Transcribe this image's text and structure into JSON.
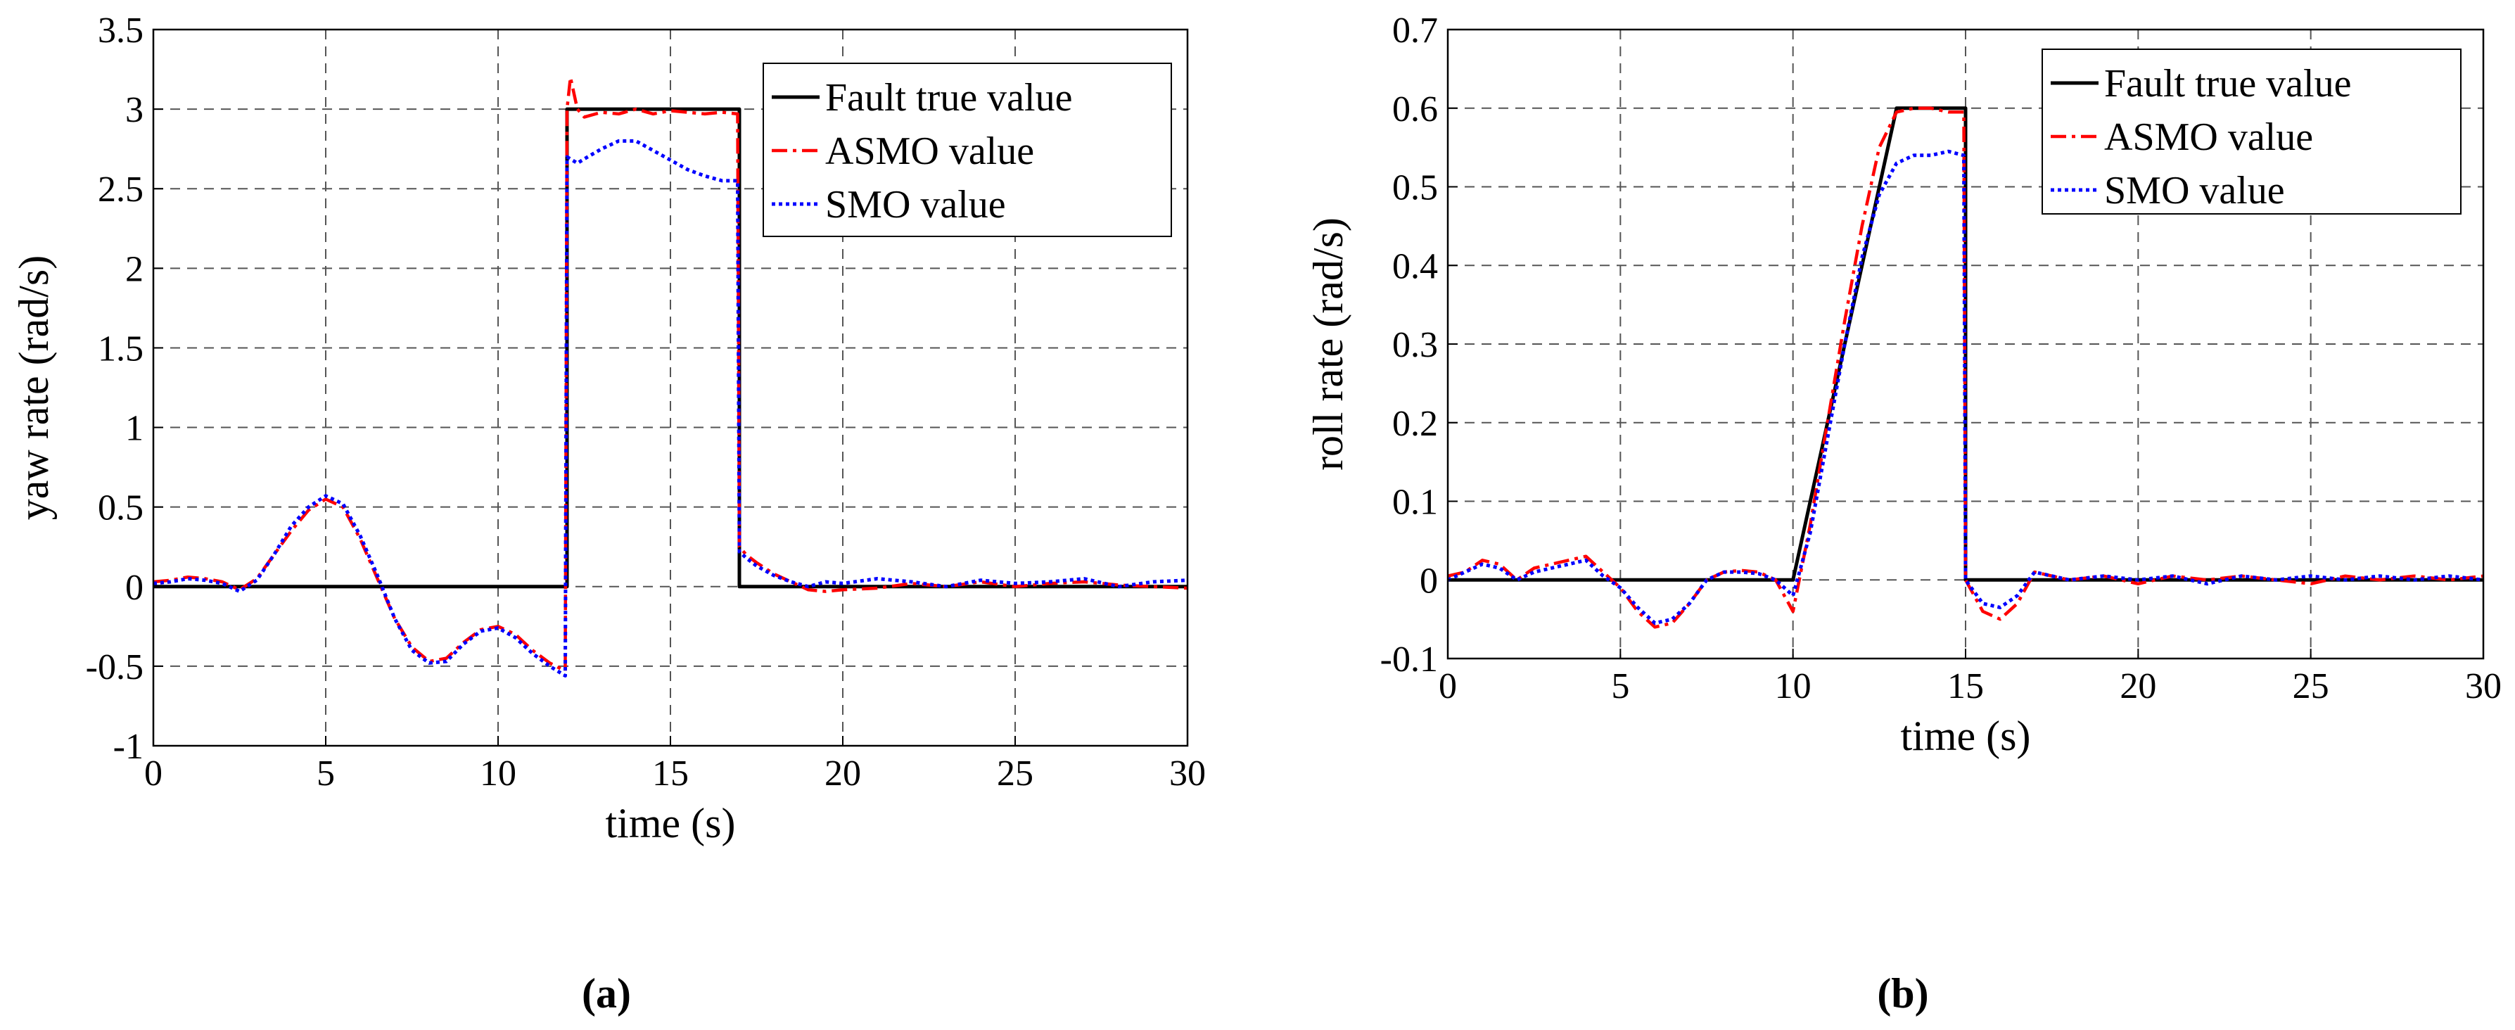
{
  "figure": {
    "captions": [
      "(a)",
      "(b)"
    ]
  },
  "colors": {
    "fault": "#000000",
    "asmo": "#ff0000",
    "smo": "#0000ff",
    "grid": "#555555"
  },
  "chart_data": [
    {
      "type": "line",
      "panel": "a",
      "xlabel": "time (s)",
      "ylabel": "yaw rate (rad/s)",
      "xlim": [
        0,
        30
      ],
      "ylim": [
        -1,
        3.5
      ],
      "xticks": [
        0,
        5,
        10,
        15,
        20,
        25,
        30
      ],
      "yticks": [
        -1,
        -0.5,
        0,
        0.5,
        1,
        1.5,
        2,
        2.5,
        3,
        3.5
      ],
      "xtick_labels": [
        "0",
        "5",
        "10",
        "15",
        "20",
        "25",
        "30"
      ],
      "ytick_labels": [
        "-1",
        "-0.5",
        "0",
        "0.5",
        "1",
        "1.5",
        "2",
        "2.5",
        "3",
        "3.5"
      ],
      "grid": true,
      "legend": {
        "placement": "top-right",
        "entries": [
          "Fault true value",
          "ASMO value",
          "SMO value"
        ]
      },
      "series": [
        {
          "name": "Fault true value",
          "style": "solid",
          "x": [
            0,
            12,
            12,
            17,
            17,
            30
          ],
          "y": [
            0,
            0,
            3,
            3,
            0,
            0
          ]
        },
        {
          "name": "ASMO value",
          "style": "dashdot",
          "x": [
            0,
            0.5,
            1,
            1.5,
            2,
            2.5,
            3,
            3.5,
            4,
            4.5,
            5,
            5.5,
            6,
            6.5,
            7,
            7.5,
            8,
            8.5,
            9,
            9.5,
            10,
            10.5,
            11,
            11.5,
            11.95,
            12,
            12.1,
            12.3,
            12.5,
            13,
            13.5,
            14,
            14.5,
            15,
            15.5,
            16,
            16.5,
            16.95,
            17,
            17.2,
            17.5,
            18,
            18.5,
            19,
            19.5,
            20,
            21,
            22,
            23,
            24,
            25,
            26,
            27,
            28,
            29,
            30
          ],
          "y": [
            0.03,
            0.04,
            0.06,
            0.05,
            0.03,
            -0.02,
            0.05,
            0.2,
            0.35,
            0.48,
            0.55,
            0.5,
            0.3,
            0.05,
            -0.2,
            -0.38,
            -0.47,
            -0.45,
            -0.35,
            -0.27,
            -0.25,
            -0.3,
            -0.4,
            -0.48,
            -0.53,
            3.0,
            3.2,
            3.0,
            2.95,
            2.98,
            2.97,
            3.0,
            2.97,
            2.99,
            2.98,
            2.97,
            2.98,
            2.97,
            0.25,
            0.2,
            0.15,
            0.08,
            0.03,
            -0.02,
            -0.03,
            -0.02,
            -0.01,
            0.02,
            0.0,
            0.03,
            0.0,
            0.02,
            0.03,
            0.01,
            0.0,
            -0.01
          ]
        },
        {
          "name": "SMO value",
          "style": "dotted",
          "x": [
            0,
            0.5,
            1,
            1.5,
            2,
            2.5,
            3,
            3.5,
            4,
            4.5,
            5,
            5.5,
            6,
            6.5,
            7,
            7.5,
            8,
            8.5,
            9,
            9.5,
            10,
            10.5,
            11,
            11.5,
            11.95,
            12,
            12.3,
            12.6,
            13,
            13.5,
            14,
            14.5,
            15,
            15.5,
            16,
            16.5,
            16.95,
            17,
            17.2,
            17.5,
            18,
            18.5,
            19,
            19.5,
            20,
            21,
            22,
            23,
            24,
            25,
            26,
            27,
            28,
            29,
            30
          ],
          "y": [
            0.02,
            0.03,
            0.05,
            0.04,
            0.02,
            -0.03,
            0.04,
            0.2,
            0.38,
            0.5,
            0.57,
            0.52,
            0.32,
            0.07,
            -0.2,
            -0.4,
            -0.48,
            -0.47,
            -0.36,
            -0.28,
            -0.26,
            -0.32,
            -0.42,
            -0.5,
            -0.56,
            2.7,
            2.66,
            2.7,
            2.75,
            2.8,
            2.8,
            2.74,
            2.68,
            2.62,
            2.58,
            2.55,
            2.55,
            0.22,
            0.18,
            0.13,
            0.07,
            0.03,
            0.0,
            0.03,
            0.02,
            0.05,
            0.03,
            0.0,
            0.04,
            0.02,
            0.03,
            0.05,
            0.0,
            0.03,
            0.04
          ]
        }
      ]
    },
    {
      "type": "line",
      "panel": "b",
      "xlabel": "time (s)",
      "ylabel": "roll rate (rad/s)",
      "xlim": [
        0,
        30
      ],
      "ylim": [
        -0.1,
        0.7
      ],
      "xticks": [
        0,
        5,
        10,
        15,
        20,
        25,
        30
      ],
      "yticks": [
        -0.1,
        0,
        0.1,
        0.2,
        0.3,
        0.4,
        0.5,
        0.6,
        0.7
      ],
      "xtick_labels": [
        "0",
        "5",
        "10",
        "15",
        "20",
        "25",
        "30"
      ],
      "ytick_labels": [
        "-0.1",
        "0",
        "0.1",
        "0.2",
        "0.3",
        "0.4",
        "0.5",
        "0.6",
        "0.7"
      ],
      "grid": true,
      "legend": {
        "placement": "top-right",
        "entries": [
          "Fault true value",
          "ASMO value",
          "SMO value"
        ]
      },
      "series": [
        {
          "name": "Fault true value",
          "style": "solid",
          "x": [
            0,
            10,
            13,
            15,
            15,
            30
          ],
          "y": [
            0,
            0,
            0.6,
            0.6,
            0,
            0
          ]
        },
        {
          "name": "ASMO value",
          "style": "dashdot",
          "x": [
            0,
            0.5,
            1,
            1.5,
            2,
            2.5,
            3,
            3.5,
            4,
            4.5,
            5,
            5.5,
            6,
            6.5,
            7,
            7.5,
            8,
            8.5,
            9,
            9.5,
            10,
            10.5,
            11,
            11.5,
            12,
            12.5,
            13,
            13.5,
            14,
            14.5,
            14.95,
            15,
            15.5,
            16,
            16.5,
            17,
            17.5,
            18,
            19,
            20,
            21,
            22,
            23,
            24,
            25,
            26,
            27,
            28,
            29,
            30
          ],
          "y": [
            0.005,
            0.01,
            0.025,
            0.02,
            0.0,
            0.015,
            0.02,
            0.025,
            0.03,
            0.01,
            -0.01,
            -0.04,
            -0.06,
            -0.055,
            -0.03,
            0.0,
            0.01,
            0.012,
            0.01,
            0.0,
            -0.04,
            0.07,
            0.2,
            0.33,
            0.45,
            0.55,
            0.595,
            0.6,
            0.6,
            0.595,
            0.595,
            0.0,
            -0.04,
            -0.05,
            -0.03,
            0.01,
            0.005,
            0.0,
            0.005,
            -0.005,
            0.005,
            0.0,
            0.005,
            0.0,
            -0.005,
            0.005,
            0.0,
            0.005,
            0.0,
            0.005
          ]
        },
        {
          "name": "SMO value",
          "style": "dotted",
          "x": [
            0,
            0.5,
            1,
            1.5,
            2,
            2.5,
            3,
            3.5,
            4,
            4.5,
            5,
            5.5,
            6,
            6.5,
            7,
            7.5,
            8,
            8.5,
            9,
            9.5,
            10,
            10.5,
            11,
            11.5,
            12,
            12.5,
            13,
            13.5,
            14,
            14.5,
            14.95,
            15,
            15.5,
            16,
            16.5,
            17,
            17.5,
            18,
            19,
            20,
            21,
            22,
            23,
            24,
            25,
            26,
            27,
            28,
            29,
            30
          ],
          "y": [
            0.0,
            0.01,
            0.02,
            0.015,
            0.0,
            0.01,
            0.015,
            0.02,
            0.025,
            0.005,
            -0.01,
            -0.035,
            -0.055,
            -0.05,
            -0.03,
            0.0,
            0.01,
            0.01,
            0.008,
            0.0,
            -0.02,
            0.06,
            0.18,
            0.3,
            0.41,
            0.49,
            0.53,
            0.54,
            0.54,
            0.545,
            0.54,
            0.0,
            -0.03,
            -0.035,
            -0.02,
            0.01,
            0.005,
            0.0,
            0.005,
            0.0,
            0.005,
            -0.005,
            0.005,
            0.0,
            0.005,
            0.0,
            0.005,
            0.0,
            0.005,
            0.0
          ]
        }
      ]
    }
  ]
}
